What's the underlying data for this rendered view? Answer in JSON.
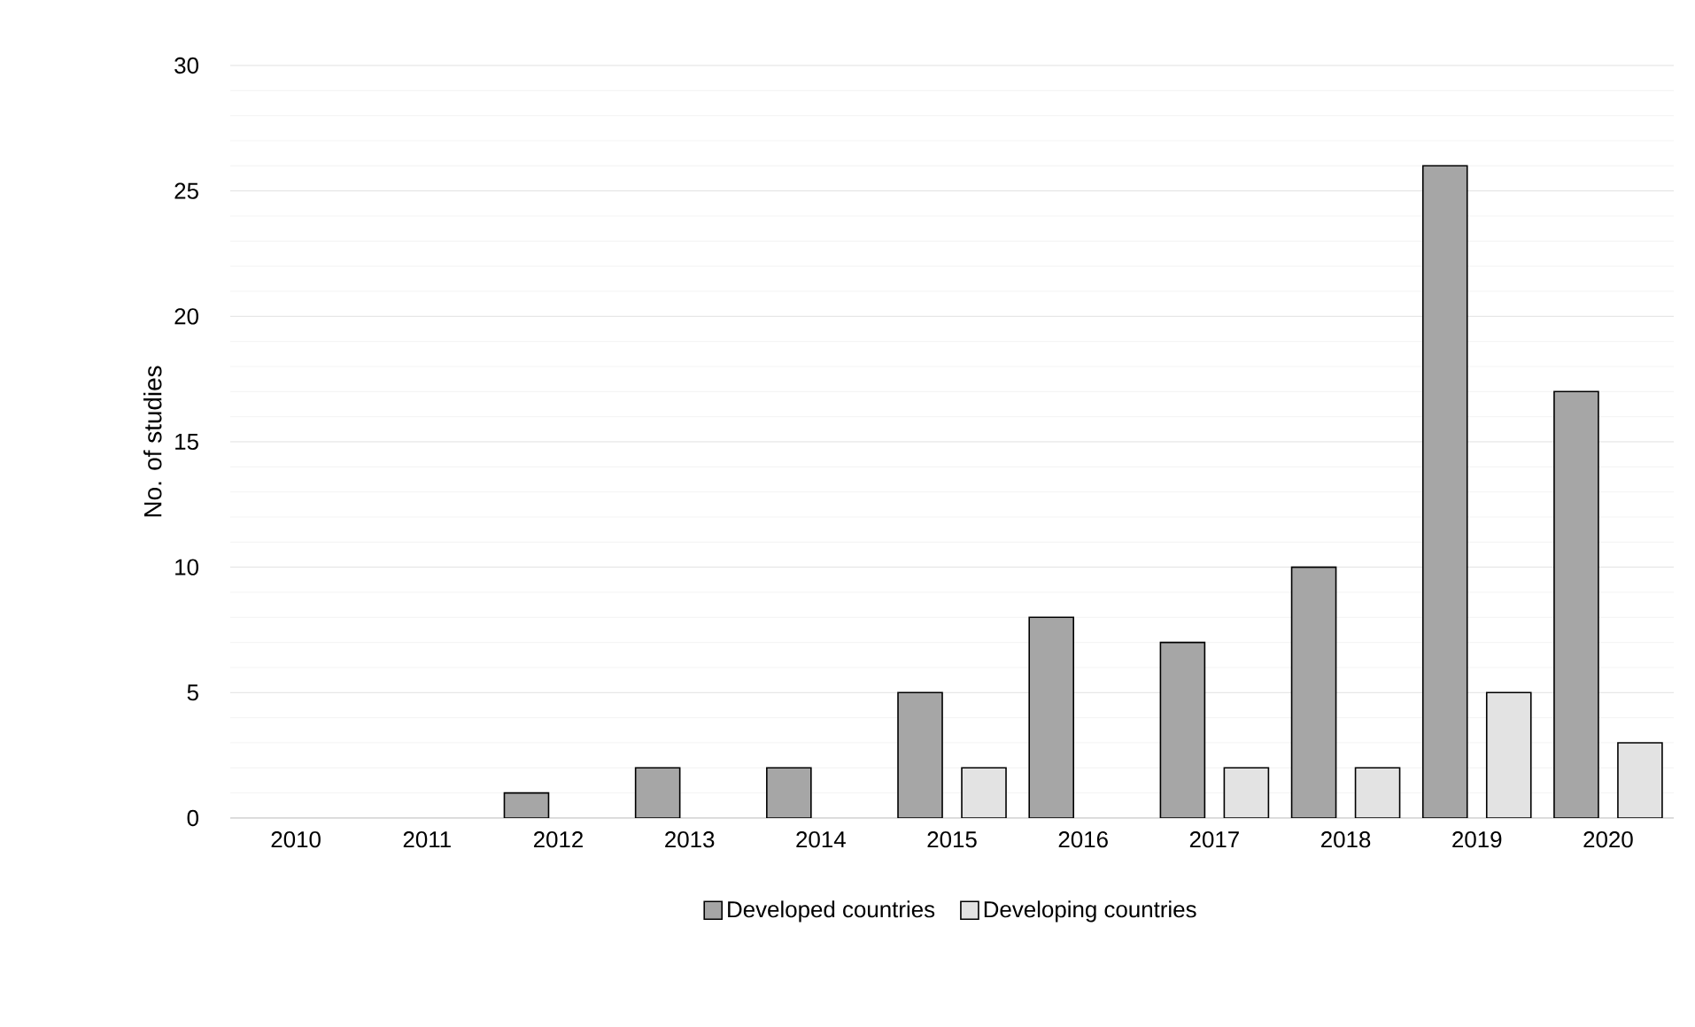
{
  "chart_data": {
    "type": "bar",
    "ylabel": "No. of studies",
    "categories": [
      "2010",
      "2011",
      "2012",
      "2013",
      "2014",
      "2015",
      "2016",
      "2017",
      "2018",
      "2019",
      "2020"
    ],
    "series": [
      {
        "name": "Developed countries",
        "color": "#a6a6a6",
        "values": [
          0,
          0,
          1,
          2,
          2,
          5,
          8,
          7,
          10,
          26,
          17
        ]
      },
      {
        "name": "Developing countries",
        "color": "#e3e3e3",
        "values": [
          0,
          0,
          0,
          0,
          0,
          2,
          0,
          2,
          2,
          5,
          3
        ]
      }
    ],
    "ylim": [
      0,
      30
    ],
    "yticks": [
      0,
      {
        "value": 1,
        "label": null
      },
      {
        "value": 2,
        "label": null
      },
      {
        "value": 3,
        "label": null
      },
      {
        "value": 4,
        "label": null
      },
      5,
      {
        "value": 6,
        "label": null
      },
      {
        "value": 7,
        "label": null
      },
      {
        "value": 8,
        "label": null
      },
      {
        "value": 9,
        "label": null
      },
      10,
      {
        "value": 11,
        "label": null
      },
      {
        "value": 12,
        "label": null
      },
      {
        "value": 13,
        "label": null
      },
      {
        "value": 14,
        "label": null
      },
      15,
      {
        "value": 16,
        "label": null
      },
      {
        "value": 17,
        "label": null
      },
      {
        "value": 18,
        "label": null
      },
      {
        "value": 19,
        "label": null
      },
      20,
      {
        "value": 21,
        "label": null
      },
      {
        "value": 22,
        "label": null
      },
      {
        "value": 23,
        "label": null
      },
      {
        "value": 24,
        "label": null
      },
      25,
      {
        "value": 26,
        "label": null
      },
      {
        "value": 27,
        "label": null
      },
      {
        "value": 28,
        "label": null
      },
      {
        "value": 29,
        "label": null
      },
      30
    ],
    "grid": "y",
    "legend": "bottom"
  }
}
